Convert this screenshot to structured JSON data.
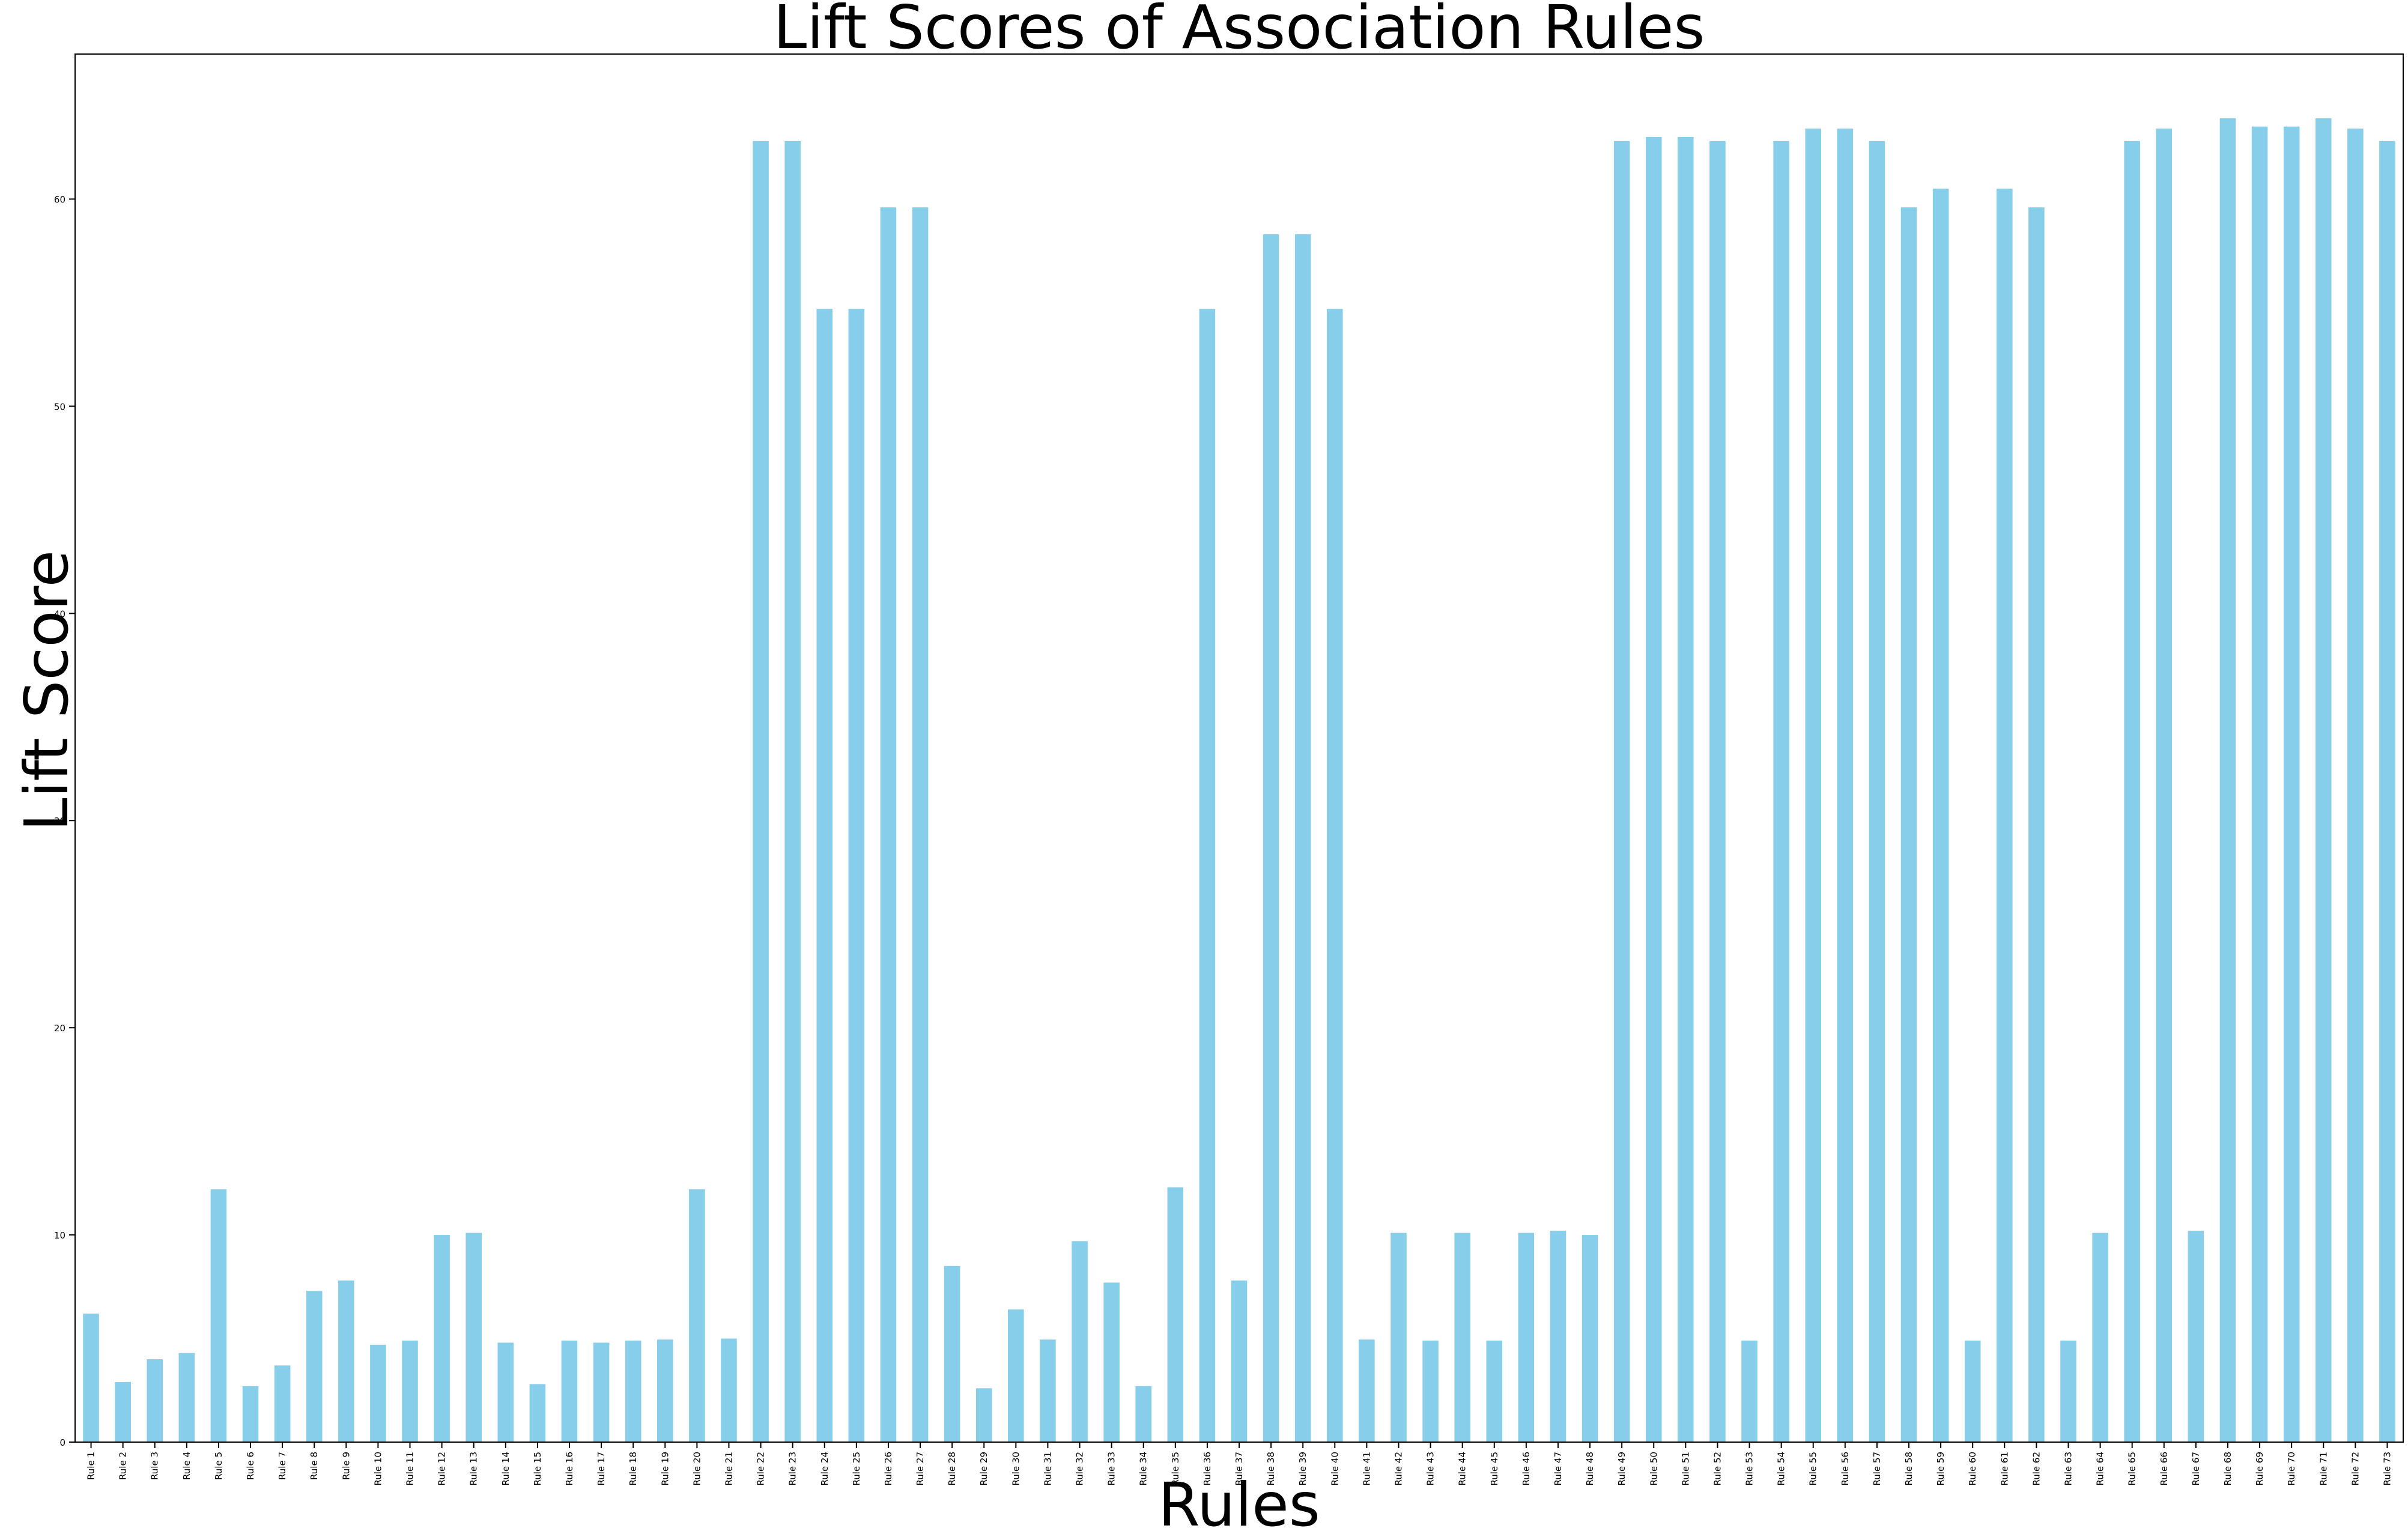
{
  "chart_data": {
    "type": "bar",
    "title": "Lift Scores of Association Rules",
    "xlabel": "Rules",
    "ylabel": "Lift Score",
    "ylim": [
      0,
      67
    ],
    "yticks": [
      0,
      10,
      20,
      30,
      40,
      50,
      60
    ],
    "grid": false,
    "legend": "none",
    "bar_color": "#87ceeb",
    "categories": [
      "Rule 1",
      "Rule 2",
      "Rule 3",
      "Rule 4",
      "Rule 5",
      "Rule 6",
      "Rule 7",
      "Rule 8",
      "Rule 9",
      "Rule 10",
      "Rule 11",
      "Rule 12",
      "Rule 13",
      "Rule 14",
      "Rule 15",
      "Rule 16",
      "Rule 17",
      "Rule 18",
      "Rule 19",
      "Rule 20",
      "Rule 21",
      "Rule 22",
      "Rule 23",
      "Rule 24",
      "Rule 25",
      "Rule 26",
      "Rule 27",
      "Rule 28",
      "Rule 29",
      "Rule 30",
      "Rule 31",
      "Rule 32",
      "Rule 33",
      "Rule 34",
      "Rule 35",
      "Rule 36",
      "Rule 37",
      "Rule 38",
      "Rule 39",
      "Rule 40",
      "Rule 41",
      "Rule 42",
      "Rule 43",
      "Rule 44",
      "Rule 45",
      "Rule 46",
      "Rule 47",
      "Rule 48",
      "Rule 49",
      "Rule 50",
      "Rule 51",
      "Rule 52",
      "Rule 53",
      "Rule 54",
      "Rule 55",
      "Rule 56",
      "Rule 57",
      "Rule 58",
      "Rule 59",
      "Rule 60",
      "Rule 61",
      "Rule 62",
      "Rule 63",
      "Rule 64",
      "Rule 65",
      "Rule 66",
      "Rule 67",
      "Rule 68",
      "Rule 69",
      "Rule 70",
      "Rule 71",
      "Rule 72",
      "Rule 73"
    ],
    "values": [
      6.2,
      2.9,
      4.0,
      4.3,
      12.2,
      2.7,
      3.7,
      7.3,
      7.8,
      4.7,
      4.9,
      10.0,
      10.1,
      4.8,
      2.8,
      4.9,
      4.8,
      4.9,
      4.95,
      12.2,
      5.0,
      62.8,
      62.8,
      54.7,
      54.7,
      59.6,
      59.6,
      8.5,
      2.6,
      6.4,
      4.95,
      9.7,
      7.7,
      2.7,
      12.3,
      54.7,
      7.8,
      58.3,
      58.3,
      54.7,
      4.95,
      10.1,
      4.9,
      10.1,
      4.9,
      10.1,
      10.2,
      10.0,
      62.8,
      63.0,
      63.0,
      62.8,
      4.9,
      62.8,
      63.4,
      63.4,
      62.8,
      59.6,
      60.5,
      4.9,
      60.5,
      59.6,
      4.9,
      10.1,
      62.8,
      63.4,
      10.2,
      63.9,
      63.5,
      63.5,
      63.9,
      63.4,
      62.8
    ]
  }
}
